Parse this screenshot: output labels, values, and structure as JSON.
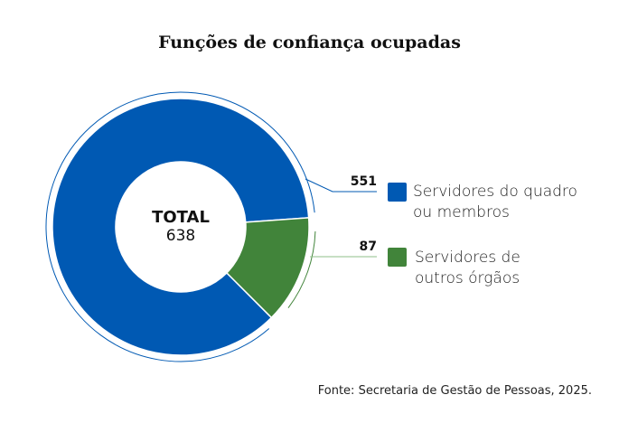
{
  "chart_data": {
    "type": "pie",
    "donut": true,
    "title": "Funções de confiança ocupadas",
    "center_label": "TOTAL",
    "total": 638,
    "series": [
      {
        "name": "Servidores do quadro ou membros",
        "value": 551,
        "color": "#0059b3"
      },
      {
        "name": "Servidores de outros órgãos",
        "value": 87,
        "color": "#41843a"
      }
    ],
    "source": "Fonte: Secretaria de Gestão de Pessoas, 2025.",
    "legend": "right"
  }
}
